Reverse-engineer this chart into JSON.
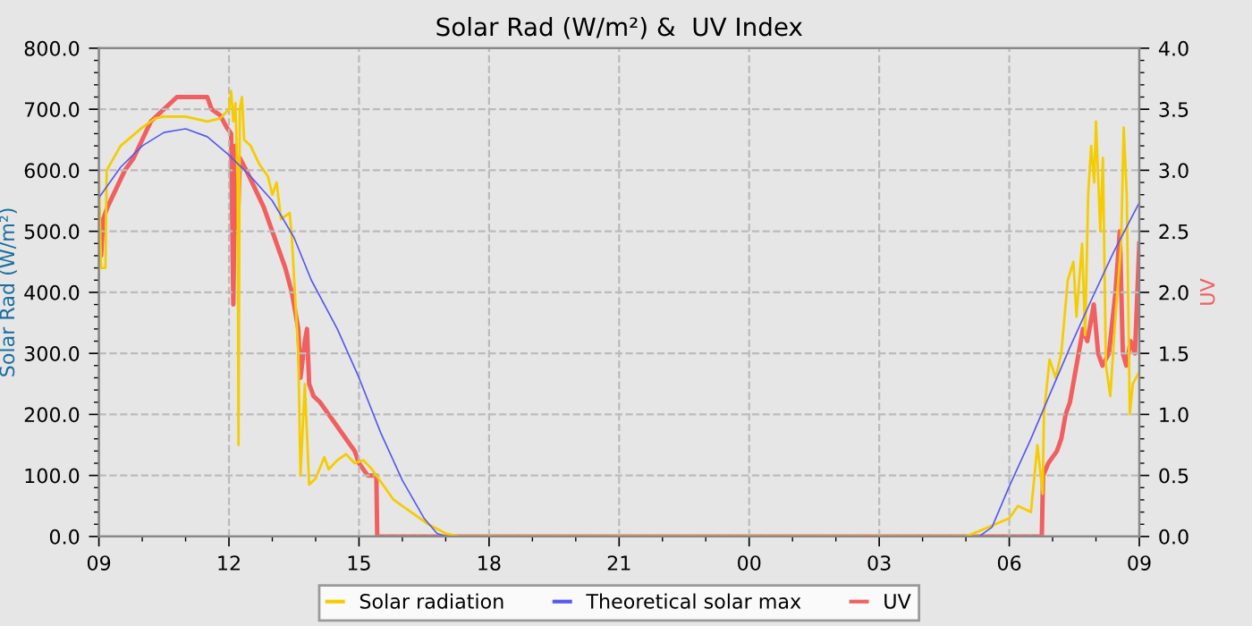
{
  "chart_data": {
    "type": "line",
    "title": "Solar Rad (W/m²) &  UV Index",
    "ylabel": "Solar Rad (W/m²)",
    "y2label": "UV",
    "xlim": [
      9,
      33
    ],
    "xticks": [
      {
        "value": 9,
        "label": "09"
      },
      12,
      15,
      18,
      21,
      {
        "value": 24,
        "label": "00"
      },
      {
        "value": 27,
        "label": "03"
      },
      {
        "value": 30,
        "label": "06"
      },
      {
        "value": 33,
        "label": "09"
      }
    ],
    "ylim": [
      0,
      800
    ],
    "yticks": [
      {
        "value": 0,
        "label": "0.0"
      },
      {
        "value": 100,
        "label": "100.0"
      },
      {
        "value": 200,
        "label": "200.0"
      },
      {
        "value": 300,
        "label": "300.0"
      },
      {
        "value": 400,
        "label": "400.0"
      },
      {
        "value": 500,
        "label": "500.0"
      },
      {
        "value": 600,
        "label": "600.0"
      },
      {
        "value": 700,
        "label": "700.0"
      },
      {
        "value": 800,
        "label": "800.0"
      }
    ],
    "y2lim": [
      0,
      4
    ],
    "y2ticks": [
      {
        "value": 0,
        "label": "0.0"
      },
      0.5,
      {
        "value": 1,
        "label": "1.0"
      },
      1.5,
      {
        "value": 2,
        "label": "2.0"
      },
      2.5,
      {
        "value": 3,
        "label": "3.0"
      },
      3.5,
      {
        "value": 4,
        "label": "4.0"
      }
    ],
    "grid": true,
    "legend": "bottom",
    "line_style": "solid",
    "marker": "none",
    "series": [
      {
        "name": "Solar radiation",
        "color": "#f5cc00",
        "x": [
          9.0,
          9.05,
          9.15,
          9.18,
          9.5,
          10.0,
          10.3,
          10.5,
          11.0,
          11.5,
          11.8,
          12.0,
          12.05,
          12.1,
          12.15,
          12.2,
          12.22,
          12.25,
          12.3,
          12.35,
          12.5,
          12.7,
          12.9,
          13.0,
          13.1,
          13.2,
          13.4,
          13.45,
          13.6,
          13.65,
          13.75,
          13.85,
          14.0,
          14.2,
          14.3,
          14.5,
          14.7,
          14.9,
          15.1,
          15.3,
          15.5,
          15.8,
          16.2,
          16.6,
          17.0,
          17.3,
          29.0,
          29.35,
          30.0,
          30.2,
          30.5,
          30.65,
          30.77,
          30.8,
          30.93,
          31.07,
          31.2,
          31.35,
          31.48,
          31.55,
          31.68,
          31.75,
          31.82,
          31.89,
          31.96,
          32.0,
          32.1,
          32.16,
          32.23,
          32.33,
          32.44,
          32.58,
          32.64,
          32.71,
          32.78,
          32.85,
          33.0
        ],
        "values": [
          590,
          440,
          440,
          600,
          640,
          670,
          685,
          688,
          688,
          680,
          685,
          700,
          730,
          680,
          710,
          580,
          150,
          700,
          720,
          650,
          640,
          610,
          590,
          560,
          580,
          520,
          530,
          490,
          300,
          100,
          250,
          85,
          95,
          130,
          110,
          125,
          135,
          120,
          125,
          110,
          90,
          60,
          40,
          20,
          5,
          0,
          0,
          10,
          30,
          50,
          40,
          150,
          70,
          200,
          290,
          260,
          300,
          420,
          450,
          360,
          480,
          330,
          560,
          640,
          580,
          680,
          500,
          620,
          280,
          230,
          350,
          480,
          670,
          560,
          200,
          250,
          270
        ]
      },
      {
        "name": "Theoretical solar max",
        "color": "#5858f0",
        "x": [
          9.0,
          9.5,
          10.0,
          10.5,
          11.0,
          11.5,
          12.0,
          12.5,
          13.0,
          13.5,
          13.9,
          14.5,
          15.0,
          15.5,
          16.0,
          16.5,
          16.8,
          17.0,
          29.3,
          29.6,
          30.0,
          30.5,
          30.93,
          31.4,
          31.89,
          32.4,
          33.0
        ],
        "values": [
          555,
          605,
          640,
          662,
          668,
          655,
          625,
          590,
          550,
          490,
          420,
          340,
          260,
          170,
          92,
          30,
          5,
          0,
          0,
          15,
          82,
          160,
          232,
          310,
          387,
          465,
          547
        ]
      },
      {
        "name": "UV",
        "color": "#f06060",
        "axis": "y2",
        "x": [
          9.0,
          9.05,
          9.1,
          9.2,
          9.4,
          9.6,
          9.8,
          10.0,
          10.2,
          10.5,
          10.8,
          11.5,
          11.6,
          11.8,
          11.95,
          12.05,
          12.1,
          12.15,
          12.2,
          12.25,
          12.4,
          12.6,
          12.8,
          13.0,
          13.1,
          13.3,
          13.45,
          13.6,
          13.65,
          13.75,
          13.8,
          13.85,
          13.95,
          14.1,
          14.3,
          14.5,
          14.7,
          14.9,
          15.0,
          15.2,
          15.4,
          15.42,
          30.75,
          30.78,
          30.9,
          31.0,
          31.1,
          31.2,
          31.3,
          31.4,
          31.5,
          31.6,
          31.7,
          31.8,
          31.9,
          31.95,
          32.05,
          32.15,
          32.3,
          32.45,
          32.55,
          32.62,
          32.7,
          32.8,
          32.9,
          33.0
        ],
        "values": [
          2.55,
          2.3,
          2.6,
          2.7,
          2.85,
          3.0,
          3.1,
          3.25,
          3.4,
          3.5,
          3.6,
          3.6,
          3.5,
          3.45,
          3.35,
          3.3,
          1.9,
          3.2,
          2.5,
          3.1,
          3.0,
          2.85,
          2.7,
          2.5,
          2.4,
          2.2,
          2.0,
          1.7,
          1.3,
          1.6,
          1.7,
          1.25,
          1.15,
          1.1,
          1.0,
          0.9,
          0.8,
          0.7,
          0.6,
          0.5,
          0.5,
          0,
          0,
          0.5,
          0.6,
          0.65,
          0.7,
          0.8,
          1.0,
          1.1,
          1.3,
          1.5,
          1.7,
          1.6,
          1.8,
          1.9,
          1.5,
          1.4,
          1.5,
          2.0,
          2.5,
          1.5,
          1.4,
          1.6,
          1.5,
          2.4
        ]
      }
    ]
  }
}
